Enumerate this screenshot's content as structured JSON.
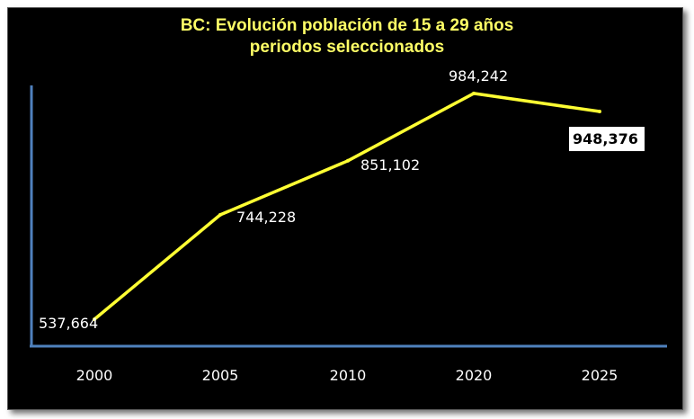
{
  "chart_data": {
    "type": "line",
    "title_lines": [
      "BC: Evolución población de 15 a 29 años",
      "periodos seleccionados"
    ],
    "categories": [
      "2000",
      "2005",
      "2010",
      "2020",
      "2025"
    ],
    "values": [
      537664,
      744228,
      851102,
      984242,
      948376
    ],
    "data_labels": [
      "537,664",
      "744,228",
      "851,102",
      "984,242",
      "948,376"
    ],
    "highlighted_point": "2025",
    "ylim": [
      520000,
      1000000
    ],
    "grid": false,
    "legend": "none",
    "colors": {
      "background": "#000000",
      "line": "#ffff33",
      "title": "#ffff66",
      "axis": "#4f81bd",
      "text": "#ffffff"
    }
  }
}
